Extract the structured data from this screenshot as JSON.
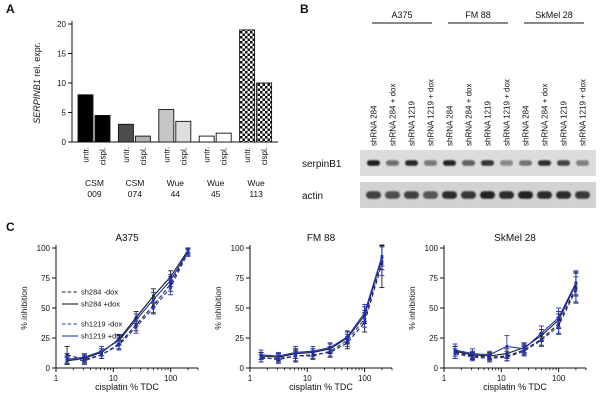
{
  "panels": {
    "a": {
      "label": "A",
      "ylabel_italic": "SERPINB1",
      "ylabel_rest": " rel. expr."
    },
    "b": {
      "label": "B",
      "groups": [
        "A375",
        "FM 88",
        "SkMel 28"
      ],
      "lane_labels": [
        "shRNA 284",
        "shRNA 284 + dox",
        "shRNA 1219",
        "shRNA 1219 + dox"
      ],
      "rows": [
        {
          "label": "serpinB1",
          "bands": [
            0.92,
            0.55,
            0.88,
            0.5,
            0.9,
            0.62,
            0.82,
            0.38,
            0.48,
            0.85,
            0.75,
            0.42
          ]
        },
        {
          "label": "actin",
          "bands": [
            0.75,
            0.68,
            0.75,
            0.65,
            0.85,
            0.8,
            0.9,
            0.85,
            0.9,
            0.85,
            0.85,
            0.78
          ]
        }
      ]
    },
    "c": {
      "label": "C"
    }
  },
  "chart_data": [
    {
      "id": "serpinb1-expression",
      "type": "bar",
      "panel": "A",
      "ylabel": "SERPINB1 rel. expr.",
      "ylim": [
        0,
        20
      ],
      "yticks": [
        0,
        5,
        10,
        15,
        20
      ],
      "conditions": [
        "untr.",
        "cispl."
      ],
      "group_labels": [
        "CSM 009",
        "CSM 074",
        "Wue 44",
        "Wue 45",
        "Wue 113"
      ],
      "group_label_lines": [
        [
          "CSM",
          "009"
        ],
        [
          "CSM",
          "074"
        ],
        [
          "Wue",
          "44"
        ],
        [
          "Wue",
          "45"
        ],
        [
          "Wue",
          "113"
        ]
      ],
      "values": [
        [
          8,
          4.5
        ],
        [
          3,
          1
        ],
        [
          5.5,
          3.5
        ],
        [
          1,
          1.5
        ],
        [
          19,
          10
        ]
      ],
      "fills": [
        [
          "#000000",
          "#000000"
        ],
        [
          "#4d4d4d",
          "#b0b0b0"
        ],
        [
          "#c6c6c6",
          "#dedede"
        ],
        [
          "#ffffff",
          "#ffffff"
        ],
        [
          "checker",
          "checker"
        ]
      ]
    },
    {
      "id": "a375-dose-response",
      "type": "line",
      "panel": "C",
      "title": "A375",
      "xlabel": "cisplatin % TDC",
      "ylabel": "% inhibition",
      "xscale": "log",
      "xlim": [
        1,
        300
      ],
      "ylim": [
        0,
        100
      ],
      "xticks": [
        1,
        10,
        100
      ],
      "yticks": [
        0,
        25,
        50,
        75,
        100
      ],
      "legend": true,
      "x": [
        1.56,
        3.13,
        6.25,
        12.5,
        25,
        50,
        100,
        200
      ],
      "series": [
        {
          "name": "sh284 -dox",
          "color": "#1a1a1a",
          "style": "dashed",
          "values": [
            11,
            7,
            11,
            20,
            36,
            52,
            70,
            97
          ],
          "err": [
            7,
            3,
            3,
            4,
            5,
            6,
            6,
            3
          ]
        },
        {
          "name": "sh284 +dox",
          "color": "#1a1a1a",
          "style": "solid",
          "values": [
            6,
            8,
            13,
            24,
            42,
            60,
            76,
            98
          ],
          "err": [
            3,
            3,
            3,
            4,
            5,
            6,
            5,
            2
          ]
        },
        {
          "name": "sh1219 -dox",
          "color": "#2233bb",
          "style": "dashed",
          "values": [
            8,
            6,
            11,
            19,
            34,
            50,
            67,
            96
          ],
          "err": [
            4,
            3,
            3,
            4,
            5,
            5,
            6,
            3
          ]
        },
        {
          "name": "sh1219 +dox",
          "color": "#2233bb",
          "style": "solid",
          "values": [
            7,
            9,
            14,
            23,
            40,
            57,
            73,
            97
          ],
          "err": [
            3,
            3,
            4,
            4,
            5,
            6,
            5,
            2
          ]
        }
      ]
    },
    {
      "id": "fm88-dose-response",
      "type": "line",
      "panel": "C",
      "title": "FM 88",
      "xlabel": "cisplatin % TDC",
      "ylabel": "% inhibition",
      "xscale": "log",
      "xlim": [
        1,
        300
      ],
      "ylim": [
        0,
        100
      ],
      "xticks": [
        1,
        10,
        100
      ],
      "yticks": [
        0,
        25,
        50,
        75,
        100
      ],
      "legend": false,
      "x": [
        1.56,
        3.13,
        6.25,
        12.5,
        25,
        50,
        100,
        200
      ],
      "series": [
        {
          "name": "sh284 -dox",
          "color": "#1a1a1a",
          "style": "dashed",
          "values": [
            9,
            7,
            10,
            11,
            13,
            21,
            38,
            87
          ],
          "err": [
            4,
            3,
            5,
            3,
            4,
            5,
            8,
            20
          ]
        },
        {
          "name": "sh284 +dox",
          "color": "#1a1a1a",
          "style": "solid",
          "values": [
            10,
            9,
            12,
            13,
            16,
            25,
            44,
            92
          ],
          "err": [
            3,
            3,
            4,
            3,
            4,
            5,
            7,
            10
          ]
        },
        {
          "name": "sh1219 -dox",
          "color": "#2233bb",
          "style": "dashed",
          "values": [
            8,
            8,
            10,
            10,
            14,
            23,
            41,
            89
          ],
          "err": [
            3,
            3,
            4,
            3,
            4,
            5,
            7,
            12
          ]
        },
        {
          "name": "sh1219 +dox",
          "color": "#2233bb",
          "style": "solid",
          "values": [
            11,
            10,
            13,
            14,
            17,
            26,
            46,
            93
          ],
          "err": [
            4,
            3,
            5,
            4,
            4,
            5,
            7,
            8
          ]
        }
      ]
    },
    {
      "id": "skmel28-dose-response",
      "type": "line",
      "panel": "C",
      "title": "SkMel 28",
      "xlabel": "cisplatin % TDC",
      "ylabel": "% inhibition",
      "xscale": "log",
      "xlim": [
        1,
        300
      ],
      "ylim": [
        0,
        100
      ],
      "xticks": [
        1,
        10,
        100
      ],
      "yticks": [
        0,
        25,
        50,
        75,
        100
      ],
      "legend": false,
      "x": [
        1.56,
        3.13,
        6.25,
        12.5,
        25,
        50,
        100,
        200
      ],
      "series": [
        {
          "name": "sh284 -dox",
          "color": "#1a1a1a",
          "style": "dashed",
          "values": [
            13,
            10,
            9,
            10,
            15,
            24,
            37,
            67
          ],
          "err": [
            5,
            3,
            3,
            4,
            4,
            5,
            8,
            12
          ]
        },
        {
          "name": "sh284 +dox",
          "color": "#1a1a1a",
          "style": "solid",
          "values": [
            14,
            11,
            10,
            12,
            17,
            27,
            40,
            70
          ],
          "err": [
            4,
            3,
            3,
            4,
            4,
            5,
            7,
            10
          ]
        },
        {
          "name": "sh1219 -dox",
          "color": "#2233bb",
          "style": "dashed",
          "values": [
            12,
            9,
            8,
            9,
            14,
            23,
            35,
            65
          ],
          "err": [
            4,
            3,
            3,
            3,
            4,
            5,
            7,
            11
          ]
        },
        {
          "name": "sh1219 +dox",
          "color": "#2233bb",
          "style": "solid",
          "values": [
            15,
            12,
            11,
            18,
            16,
            29,
            42,
            71
          ],
          "err": [
            5,
            4,
            3,
            9,
            4,
            6,
            8,
            10
          ]
        }
      ]
    }
  ]
}
